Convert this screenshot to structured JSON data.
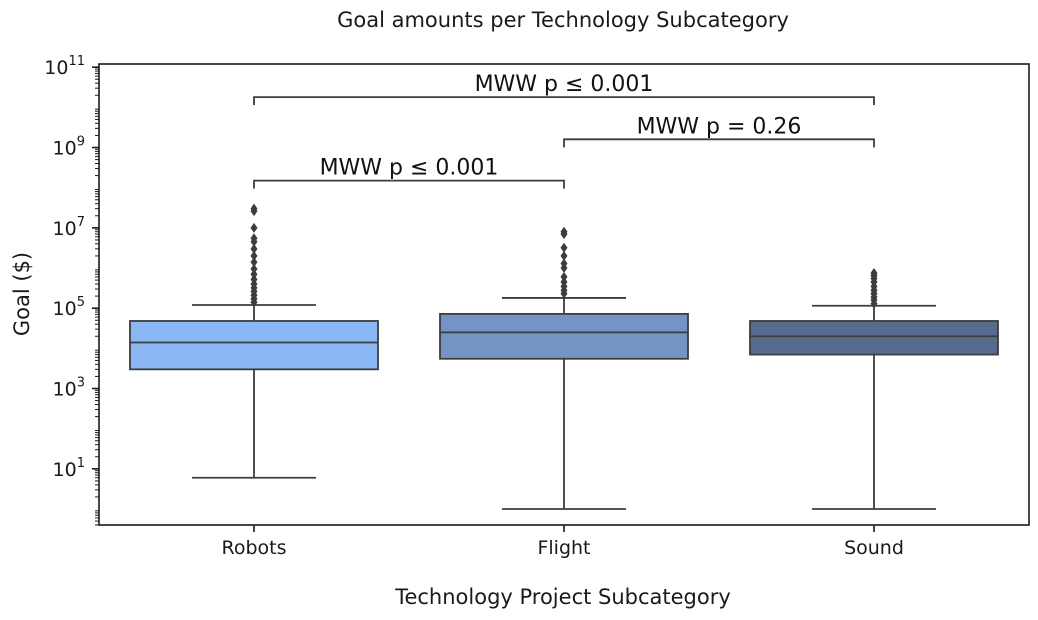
{
  "chart_data": {
    "type": "box",
    "title": "Goal amounts per Technology Subcategory",
    "xlabel": "Technology Project Subcategory",
    "ylabel": "Goal ($)",
    "yscale": "log",
    "ylim": [
      0.4,
      120000000000.0
    ],
    "yticks": [
      {
        "value": 10,
        "base": "10",
        "exp": "1"
      },
      {
        "value": 1000,
        "base": "10",
        "exp": "3"
      },
      {
        "value": 100000,
        "base": "10",
        "exp": "5"
      },
      {
        "value": 10000000,
        "base": "10",
        "exp": "7"
      },
      {
        "value": 1000000000,
        "base": "10",
        "exp": "9"
      },
      {
        "value": 100000000000,
        "base": "10",
        "exp": "11"
      }
    ],
    "categories": [
      "Robots",
      "Flight",
      "Sound"
    ],
    "boxes": [
      {
        "category": "Robots",
        "color": "#8bb8f4",
        "whisker_low": 6,
        "q1": 3000,
        "median": 14000,
        "q3": 48000,
        "whisker_high": 120000,
        "outliers": [
          140000,
          170000,
          210000,
          260000,
          320000,
          400000,
          520000,
          700000,
          950000,
          1400000,
          2000000,
          3000000,
          4500000,
          5500000,
          10000000,
          26000000,
          30000000
        ]
      },
      {
        "category": "Flight",
        "color": "#7394c4",
        "whisker_low": 1,
        "q1": 5500,
        "median": 25000,
        "q3": 72000,
        "whisker_high": 180000,
        "outliers": [
          230000,
          280000,
          350000,
          450000,
          600000,
          1000000,
          1300000,
          2000000,
          3200000,
          7000000,
          8000000
        ]
      },
      {
        "category": "Sound",
        "color": "#566c8f",
        "whisker_low": 1,
        "q1": 7000,
        "median": 20000,
        "q3": 48000,
        "whisker_high": 115000,
        "outliers": [
          130000,
          160000,
          190000,
          230000,
          280000,
          350000,
          450000,
          550000,
          650000,
          750000
        ]
      }
    ],
    "annotations": [
      {
        "from": "Robots",
        "to": "Flight",
        "text": "MWW p ≤ 0.001",
        "y": 150000000
      },
      {
        "from": "Flight",
        "to": "Sound",
        "text": "MWW p = 0.26",
        "y": 1600000000
      },
      {
        "from": "Robots",
        "to": "Sound",
        "text": "MWW p ≤ 0.001",
        "y": 18000000000
      }
    ],
    "grid": false,
    "legend": "none"
  }
}
